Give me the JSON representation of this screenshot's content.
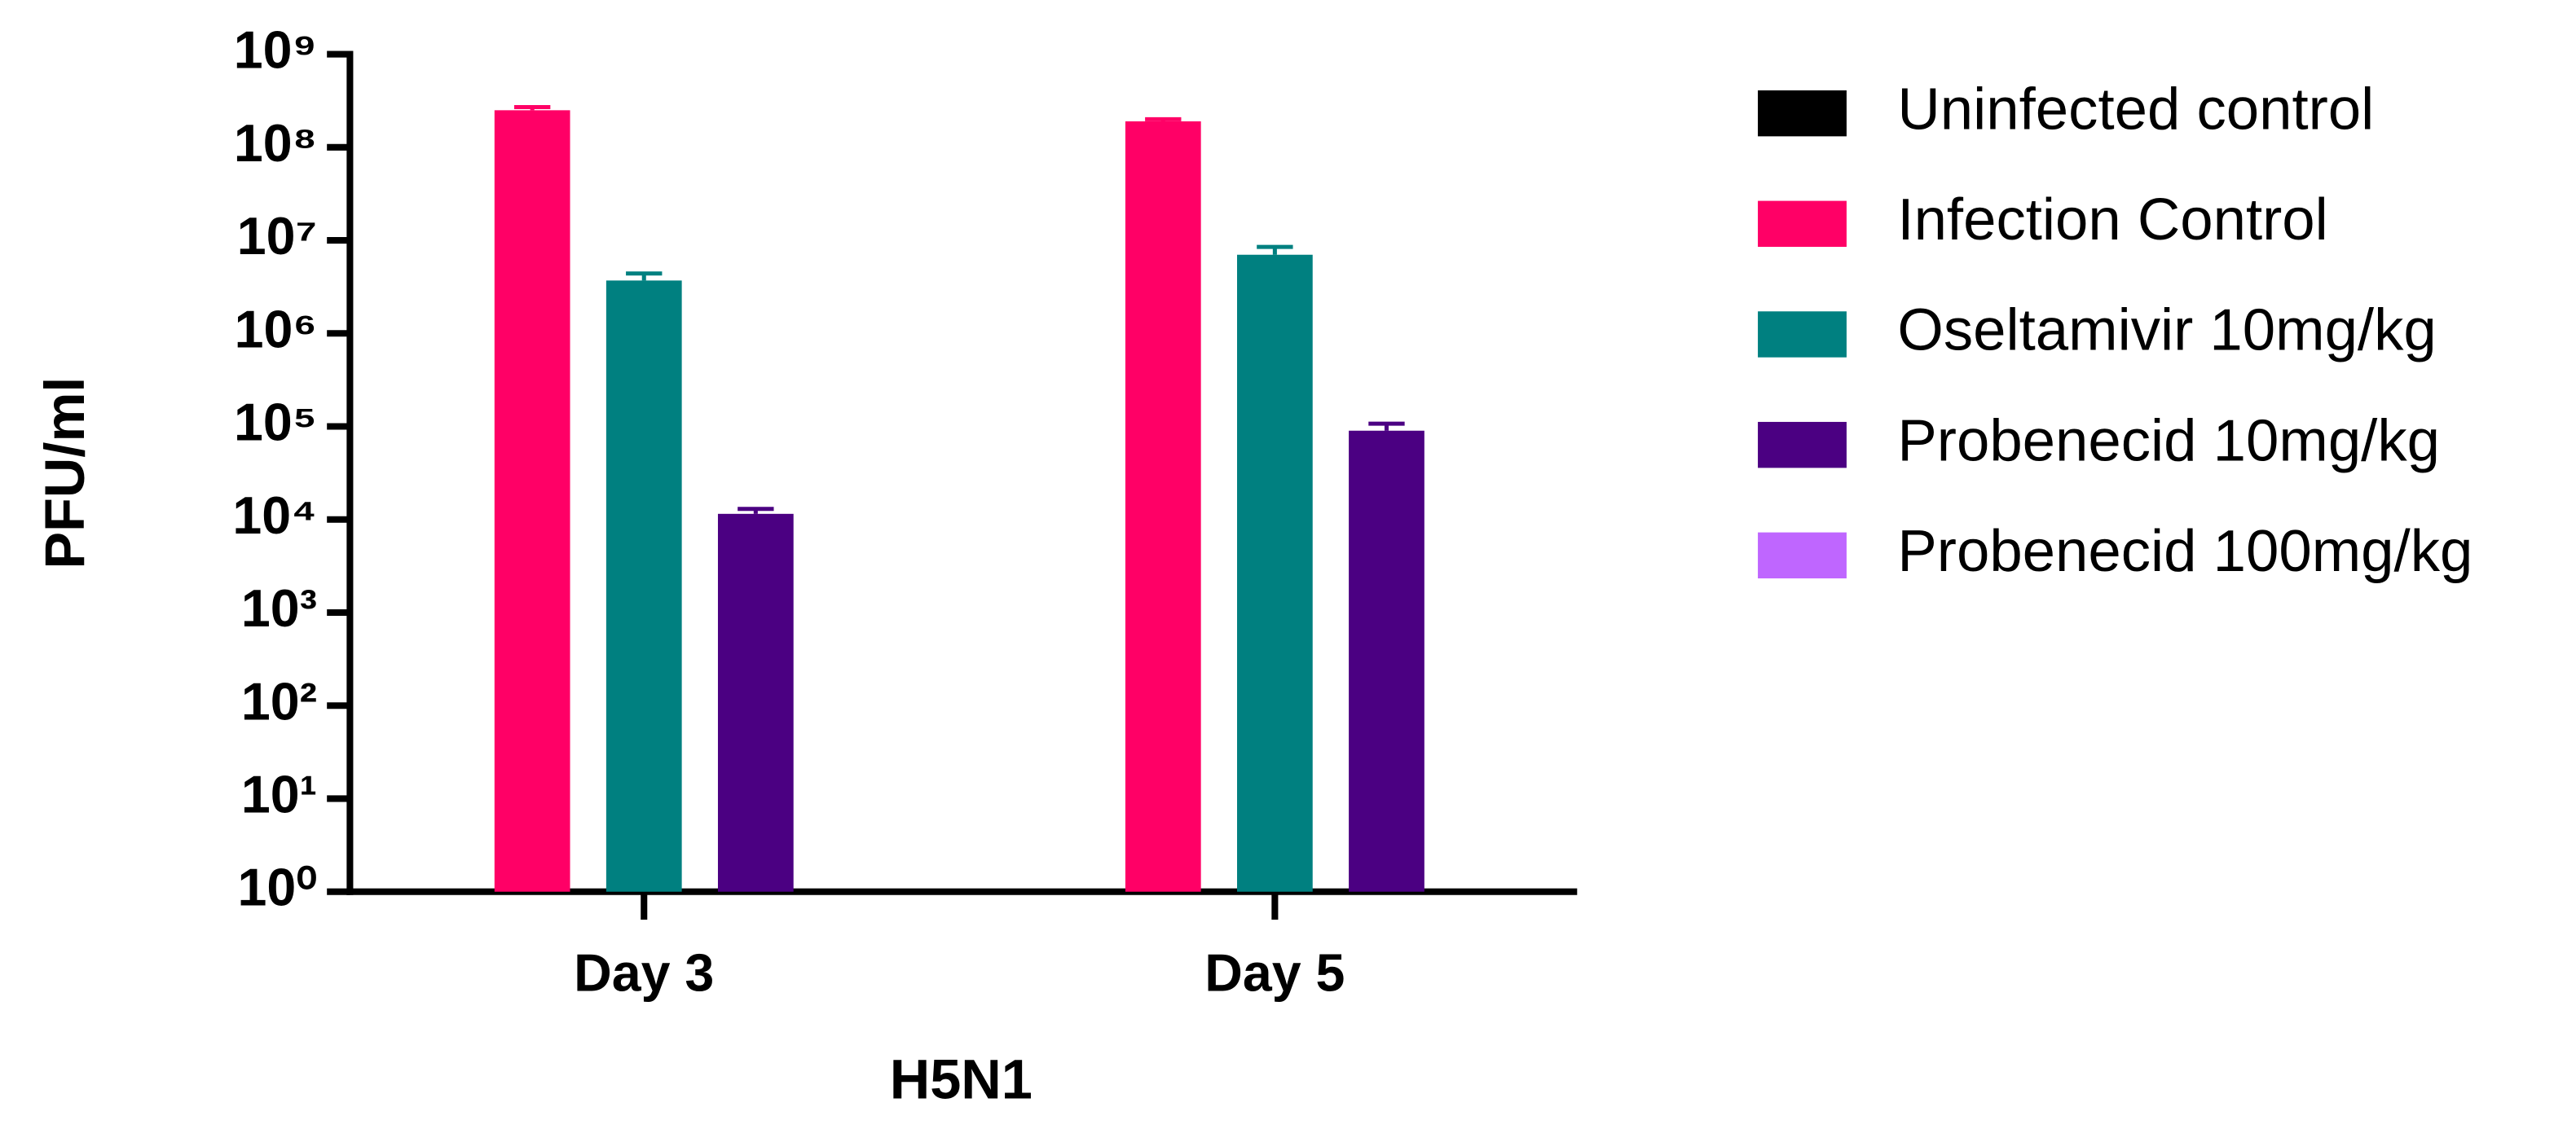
{
  "chart_data": {
    "type": "bar",
    "log_y": true,
    "x_label": "H5N1",
    "y_label": "PFU/ml",
    "categories": [
      "Day 3",
      "Day 5"
    ],
    "series": [
      {
        "name": "Uninfected control",
        "color": "#000000",
        "values": [
          null,
          null
        ],
        "errors": [
          null,
          null
        ]
      },
      {
        "name": "Infection Control",
        "color": "#ff0066",
        "values": [
          250000000,
          190000000
        ],
        "errors": [
          20000000,
          10000000
        ]
      },
      {
        "name": "Oseltamivir 10mg/kg",
        "color": "#008080",
        "values": [
          3700000,
          7000000
        ],
        "errors": [
          700000,
          1500000
        ]
      },
      {
        "name": "Probenecid 10mg/kg",
        "color": "#4b0082",
        "values": [
          11500,
          90000
        ],
        "errors": [
          1500,
          17000
        ]
      },
      {
        "name": "Probenecid 100mg/kg",
        "color": "#bf66ff",
        "values": [
          null,
          null
        ],
        "errors": [
          null,
          null
        ]
      }
    ],
    "ylim": [
      1,
      1000000000
    ],
    "yticks": [
      {
        "value": 1,
        "label": "10⁰"
      },
      {
        "value": 10,
        "label": "10¹"
      },
      {
        "value": 100,
        "label": "10²"
      },
      {
        "value": 1000,
        "label": "10³"
      },
      {
        "value": 10000,
        "label": "10⁴"
      },
      {
        "value": 100000,
        "label": "10⁵"
      },
      {
        "value": 1000000,
        "label": "10⁶"
      },
      {
        "value": 10000000,
        "label": "10⁷"
      },
      {
        "value": 100000000,
        "label": "10⁸"
      },
      {
        "value": 1000000000,
        "label": "10⁹"
      }
    ],
    "legend": "right"
  }
}
